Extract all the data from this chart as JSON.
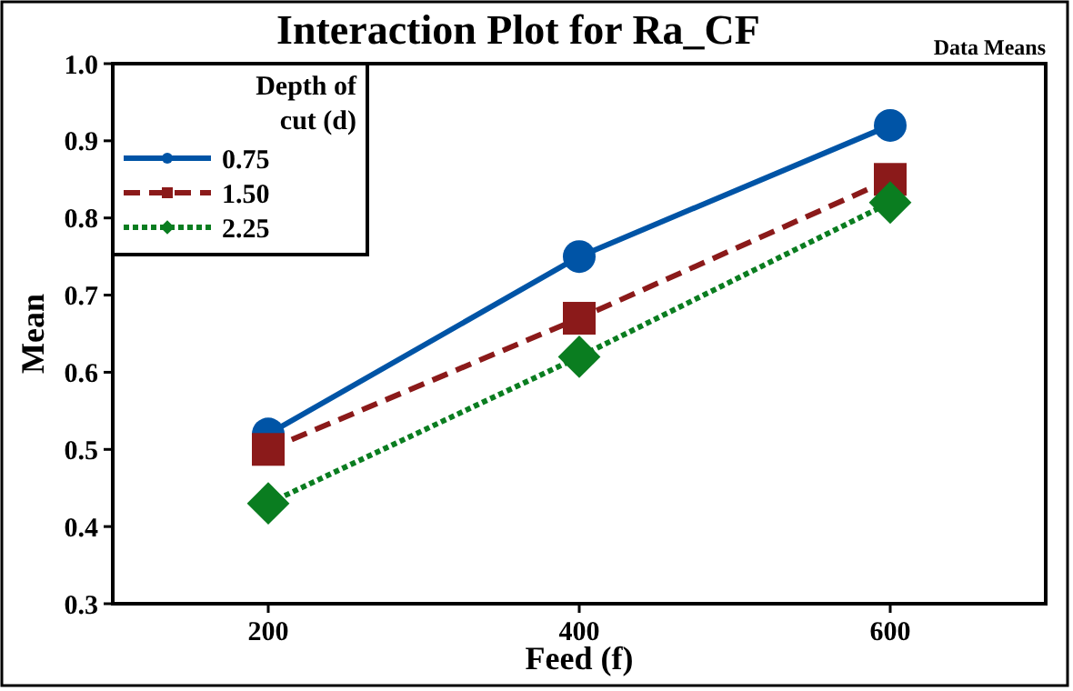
{
  "chart_data": {
    "type": "line",
    "title": "Interaction Plot for Ra_CF",
    "xlabel": "Feed (f)",
    "ylabel": "Mean",
    "legend_title": "Depth of cut (d)",
    "annotations": [
      "Data Means"
    ],
    "x": [
      200,
      400,
      600
    ],
    "series": [
      {
        "name": "0.75",
        "color": "#0054a6",
        "values": [
          0.52,
          0.75,
          0.92
        ],
        "marker": "circle",
        "line_style": "solid"
      },
      {
        "name": "1.50",
        "color": "#8b1a1a",
        "values": [
          0.5,
          0.67,
          0.85
        ],
        "marker": "square",
        "line_style": "dashed"
      },
      {
        "name": "2.25",
        "color": "#0a7d20",
        "values": [
          0.43,
          0.62,
          0.82
        ],
        "marker": "diamond",
        "line_style": "dotted"
      }
    ],
    "xlim": [
      100,
      700
    ],
    "xticks": [
      200,
      400,
      600
    ],
    "ylim": [
      0.3,
      1.0
    ],
    "yticks": [
      0.3,
      0.4,
      0.5,
      0.6,
      0.7,
      0.8,
      0.9,
      {
        "value": 1.0,
        "label": "1.0"
      }
    ],
    "grid": false,
    "legend": "top left"
  }
}
